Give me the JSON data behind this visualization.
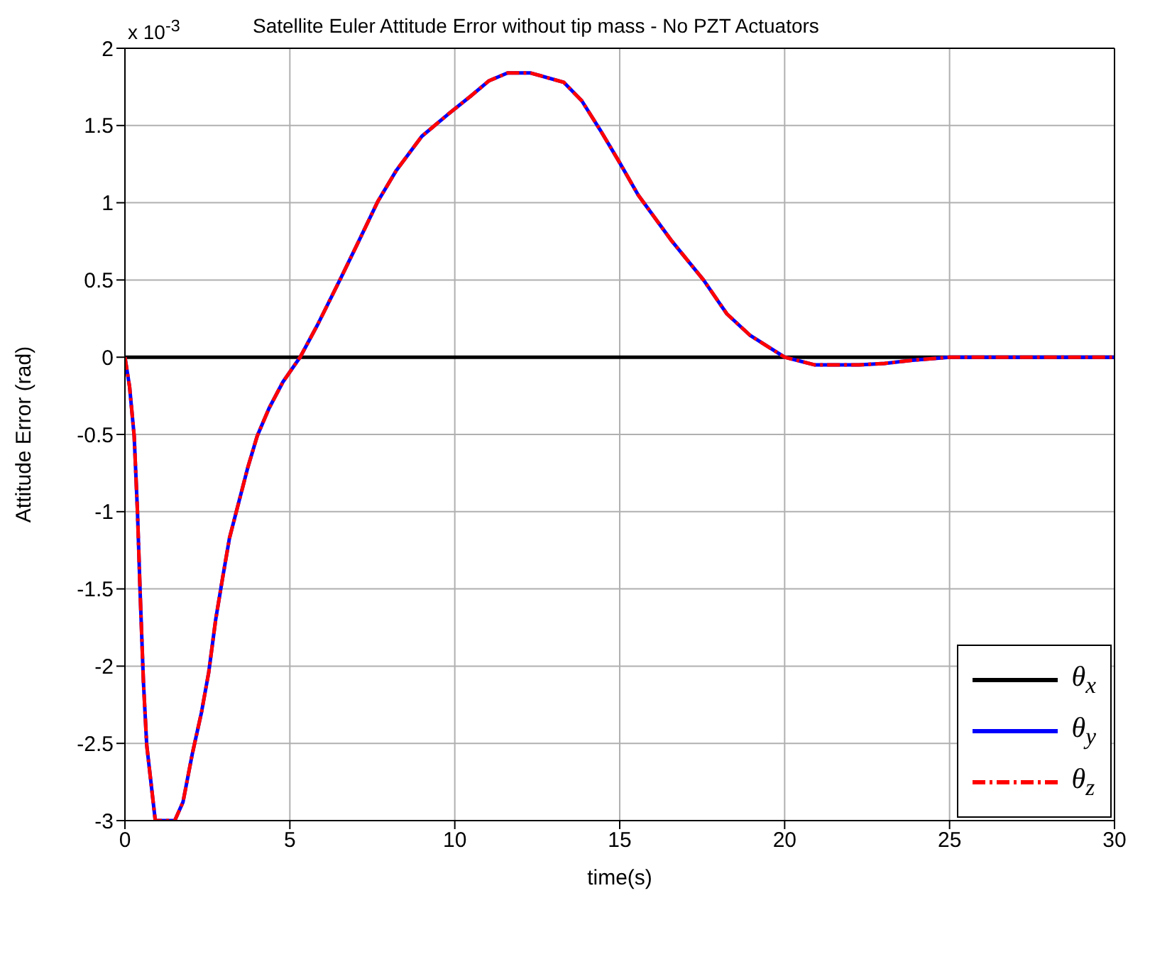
{
  "chart_data": {
    "type": "line",
    "title": "Satellite Euler Attitude Error without tip mass - No PZT Actuators",
    "xlabel": "time(s)",
    "ylabel": "Attitude Error (rad)",
    "annotations": [
      "x 10$^{-3}$"
    ],
    "xlim": [
      0,
      30
    ],
    "xticks": [
      0,
      5,
      10,
      15,
      20,
      25,
      30
    ],
    "ylim": [
      -3,
      2
    ],
    "yticks": [
      -3,
      -2.5,
      -2,
      -1.5,
      -1,
      -0.5,
      0,
      0.5,
      1,
      1.5,
      2
    ],
    "grid": true,
    "legend": "bottom right",
    "marker": "none",
    "series": [
      {
        "name": "θ$_{x}$",
        "color": "#000000",
        "line_style": "solid",
        "x": [
          0,
          30
        ],
        "values": [
          0,
          0
        ]
      },
      {
        "name": "θ$_{y}$",
        "color": "#0000ff",
        "line_style": "solid",
        "x": [
          0,
          0.14,
          0.28,
          0.38,
          0.46,
          0.56,
          0.66,
          0.92,
          1.51,
          1.76,
          2.04,
          2.32,
          2.54,
          2.75,
          2.96,
          3.17,
          3.45,
          3.73,
          4.01,
          4.37,
          4.79,
          5.31,
          5.84,
          6.54,
          7.04,
          7.67,
          8.23,
          9.0,
          9.78,
          10.48,
          11.04,
          11.6,
          12.3,
          13.3,
          13.85,
          14.41,
          14.97,
          15.56,
          16.55,
          17.54,
          18.25,
          18.96,
          20,
          20.92,
          22.25,
          23.03,
          23.87,
          25,
          30
        ],
        "values": [
          0,
          -0.19,
          -0.51,
          -1.0,
          -1.52,
          -2.1,
          -2.51,
          -3.0,
          -3.0,
          -2.88,
          -2.57,
          -2.3,
          -2.04,
          -1.7,
          -1.43,
          -1.17,
          -0.94,
          -0.71,
          -0.51,
          -0.33,
          -0.16,
          0,
          0.21,
          0.51,
          0.73,
          1.01,
          1.21,
          1.43,
          1.57,
          1.69,
          1.79,
          1.84,
          1.84,
          1.78,
          1.66,
          1.47,
          1.27,
          1.05,
          0.76,
          0.5,
          0.28,
          0.14,
          0,
          -0.05,
          -0.05,
          -0.04,
          -0.02,
          0,
          0
        ]
      },
      {
        "name": "θ$_{z}$",
        "color": "#ff0000",
        "line_style": "dashed",
        "x": [
          0,
          0.14,
          0.28,
          0.38,
          0.46,
          0.56,
          0.66,
          0.92,
          1.51,
          1.76,
          2.04,
          2.32,
          2.54,
          2.75,
          2.96,
          3.17,
          3.45,
          3.73,
          4.01,
          4.37,
          4.79,
          5.31,
          5.84,
          6.54,
          7.04,
          7.67,
          8.23,
          9.0,
          9.78,
          10.48,
          11.04,
          11.6,
          12.3,
          13.3,
          13.85,
          14.41,
          14.97,
          15.56,
          16.55,
          17.54,
          18.25,
          18.96,
          20,
          20.92,
          22.25,
          23.03,
          23.87,
          25,
          30
        ],
        "values": [
          0,
          -0.19,
          -0.51,
          -1.0,
          -1.52,
          -2.1,
          -2.51,
          -3.0,
          -3.0,
          -2.88,
          -2.57,
          -2.3,
          -2.04,
          -1.7,
          -1.43,
          -1.17,
          -0.94,
          -0.71,
          -0.51,
          -0.33,
          -0.16,
          0,
          0.21,
          0.51,
          0.73,
          1.01,
          1.21,
          1.43,
          1.57,
          1.69,
          1.79,
          1.84,
          1.84,
          1.78,
          1.66,
          1.47,
          1.27,
          1.05,
          0.76,
          0.5,
          0.28,
          0.14,
          0,
          -0.05,
          -0.05,
          -0.04,
          -0.02,
          0,
          0
        ]
      }
    ]
  }
}
